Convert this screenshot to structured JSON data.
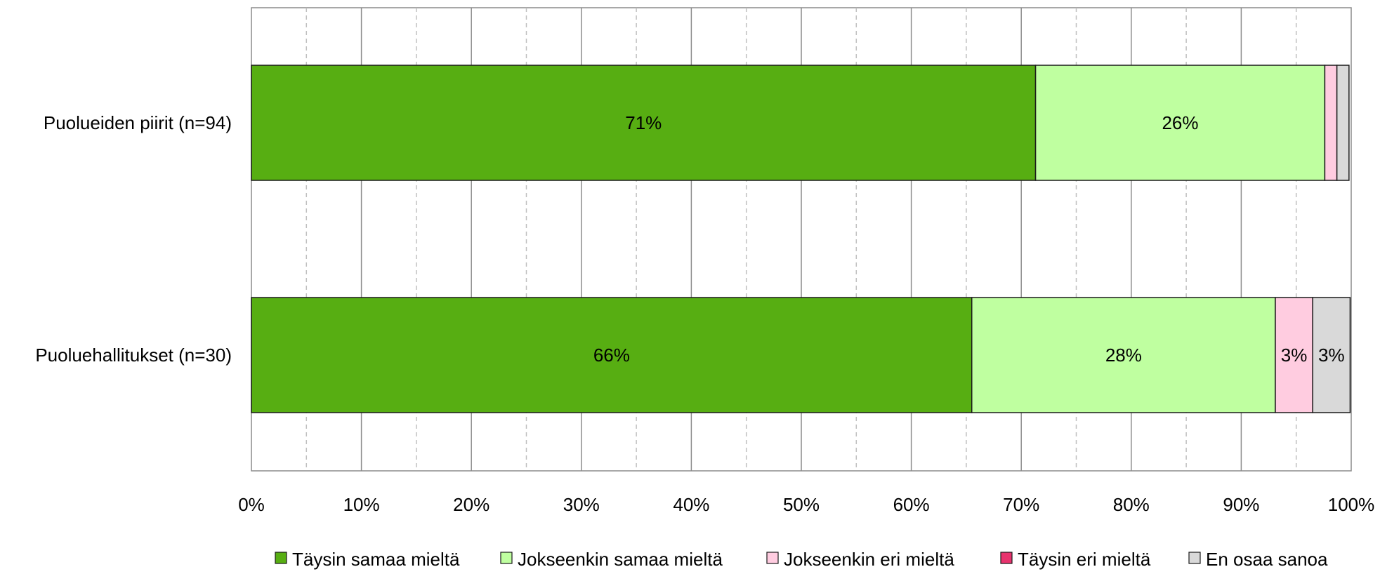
{
  "chart_data": {
    "type": "bar",
    "orientation": "horizontal",
    "stacked": true,
    "percent_scale": true,
    "title": "",
    "xlabel": "",
    "ylabel": "",
    "xlim": [
      0,
      100
    ],
    "x_ticks": [
      "0%",
      "10%",
      "20%",
      "30%",
      "40%",
      "50%",
      "60%",
      "70%",
      "80%",
      "90%",
      "100%"
    ],
    "grid": {
      "major": true,
      "minor_dashed": true
    },
    "legend_position": "bottom",
    "categories": [
      "Puolueiden piirit (n=94)",
      "Puoluehallitukset (n=30)"
    ],
    "series": [
      {
        "name": "Täysin samaa mieltä",
        "color": "#57AE12",
        "values": [
          71.3,
          65.5
        ],
        "labels": [
          "71%",
          "66%"
        ]
      },
      {
        "name": "Jokseenkin samaa mieltä",
        "color": "#BFFFA0",
        "values": [
          26.3,
          27.6
        ],
        "labels": [
          "26%",
          "28%"
        ]
      },
      {
        "name": "Jokseenkin eri mieltä",
        "color": "#FFCCE0",
        "values": [
          1.1,
          3.4
        ],
        "labels": [
          "",
          "3%"
        ]
      },
      {
        "name": "Täysin eri mieltä",
        "color": "#E8336E",
        "values": [
          0,
          0
        ],
        "labels": [
          "",
          ""
        ]
      },
      {
        "name": "En osaa sanoa",
        "color": "#D9D9D9",
        "values": [
          1.1,
          3.4
        ],
        "labels": [
          "",
          "3%"
        ]
      }
    ]
  }
}
